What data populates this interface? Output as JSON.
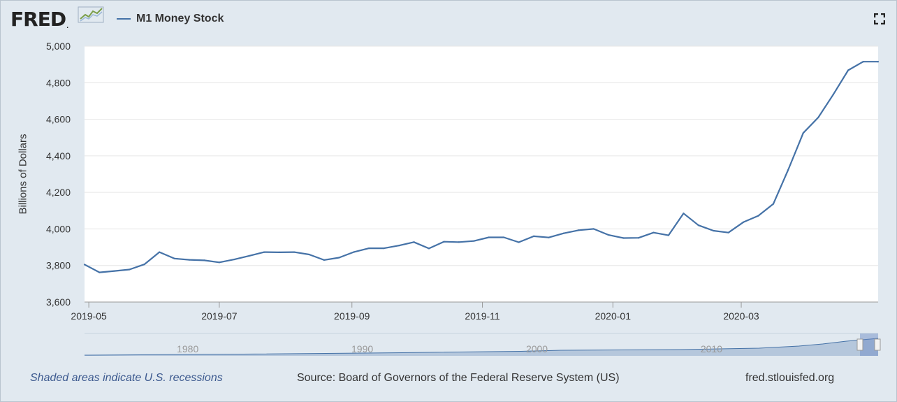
{
  "header": {
    "logo_text": "FRED",
    "logo_mark": ".",
    "legend_label": "M1 Money Stock"
  },
  "icons": {
    "logo_graph": "line-graph-icon",
    "fullscreen": "fullscreen-icon"
  },
  "colors": {
    "series_line": "#4572a7",
    "plot_background": "#ffffff",
    "page_background": "#e1e9f0",
    "navigator_fill": "#a5bbd6"
  },
  "chart_data": {
    "type": "line",
    "title": "",
    "xlabel": "",
    "ylabel": "Billions of Dollars",
    "ylim": [
      3600,
      5000
    ],
    "yticks": [
      3600,
      3800,
      4000,
      4200,
      4400,
      4600,
      4800,
      5000
    ],
    "ytick_labels": [
      "3,600",
      "3,800",
      "4,000",
      "4,200",
      "4,400",
      "4,600",
      "4,800",
      "5,000"
    ],
    "xlim": [
      "2019-04-29",
      "2020-05-04"
    ],
    "xtick_labels": [
      "2019-05",
      "2019-07",
      "2019-09",
      "2019-11",
      "2020-01",
      "2020-03"
    ],
    "xtick_dates": [
      "2019-05-01",
      "2019-07-01",
      "2019-09-01",
      "2019-11-01",
      "2020-01-01",
      "2020-03-01"
    ],
    "grid": true,
    "series": [
      {
        "name": "M1 Money Stock",
        "x": [
          "2019-04-29",
          "2019-05-06",
          "2019-05-13",
          "2019-05-20",
          "2019-05-27",
          "2019-06-03",
          "2019-06-10",
          "2019-06-17",
          "2019-06-24",
          "2019-07-01",
          "2019-07-08",
          "2019-07-15",
          "2019-07-22",
          "2019-07-29",
          "2019-08-05",
          "2019-08-12",
          "2019-08-19",
          "2019-08-26",
          "2019-09-02",
          "2019-09-09",
          "2019-09-16",
          "2019-09-23",
          "2019-09-30",
          "2019-10-07",
          "2019-10-14",
          "2019-10-21",
          "2019-10-28",
          "2019-11-04",
          "2019-11-11",
          "2019-11-18",
          "2019-11-25",
          "2019-12-02",
          "2019-12-09",
          "2019-12-16",
          "2019-12-23",
          "2019-12-30",
          "2020-01-06",
          "2020-01-13",
          "2020-01-20",
          "2020-01-27",
          "2020-02-03",
          "2020-02-10",
          "2020-02-17",
          "2020-02-24",
          "2020-03-02",
          "2020-03-09",
          "2020-03-16",
          "2020-03-23",
          "2020-03-30",
          "2020-04-06",
          "2020-04-13",
          "2020-04-20",
          "2020-04-27",
          "2020-05-04"
        ],
        "values": [
          3805,
          3762,
          3770,
          3778,
          3806,
          3873,
          3838,
          3831,
          3828,
          3817,
          3833,
          3853,
          3873,
          3872,
          3873,
          3860,
          3830,
          3843,
          3874,
          3894,
          3894,
          3909,
          3928,
          3893,
          3930,
          3928,
          3934,
          3954,
          3954,
          3927,
          3960,
          3953,
          3976,
          3993,
          4000,
          3967,
          3950,
          3951,
          3980,
          3965,
          4085,
          4020,
          3990,
          3980,
          4037,
          4072,
          4137,
          4325,
          4525,
          4610,
          4735,
          4868,
          4915,
          4915
        ]
      }
    ],
    "navigator": {
      "tick_labels": [
        "1980",
        "1990",
        "2000",
        "2010"
      ]
    }
  },
  "footer": {
    "recession_note": "Shaded areas indicate U.S. recessions",
    "source": "Source: Board of Governors of the Federal Reserve System (US)",
    "site": "fred.stlouisfed.org"
  }
}
